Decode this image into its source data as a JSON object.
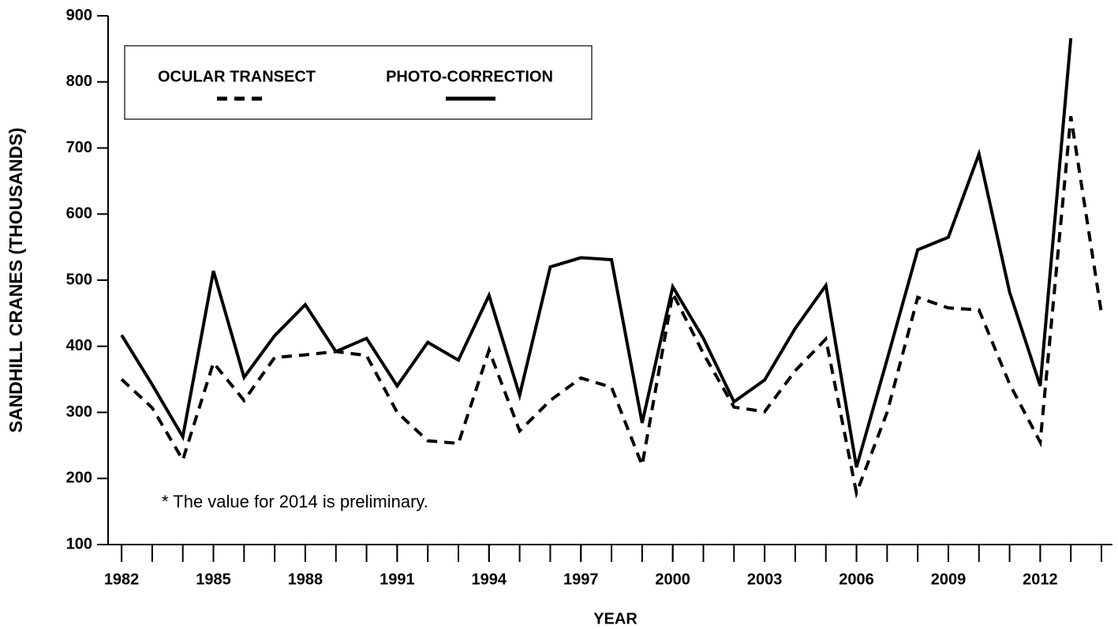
{
  "chart_data": {
    "type": "line",
    "y_label": "SANDHILL CRANES (THOUSANDS)",
    "x_label": "YEAR",
    "annotation": "* The value for 2014 is preliminary.",
    "x": [
      1982,
      1983,
      1984,
      1985,
      1986,
      1987,
      1988,
      1989,
      1990,
      1991,
      1992,
      1993,
      1994,
      1995,
      1996,
      1997,
      1998,
      1999,
      2000,
      2001,
      2002,
      2003,
      2004,
      2005,
      2006,
      2007,
      2008,
      2009,
      2010,
      2011,
      2012,
      2013,
      2014
    ],
    "series": [
      {
        "name": "OCULAR TRANSECT",
        "color": "#000000",
        "dash": true,
        "values": [
          350,
          307,
          228,
          375,
          318,
          383,
          387,
          392,
          386,
          300,
          257,
          253,
          394,
          272,
          318,
          352,
          338,
          220,
          480,
          389,
          308,
          301,
          363,
          411,
          178,
          300,
          474,
          458,
          455,
          343,
          255,
          748,
          450
        ]
      },
      {
        "name": "PHOTO-CORRECTION",
        "color": "#000000",
        "dash": false,
        "values": [
          417,
          342,
          263,
          514,
          353,
          416,
          463,
          392,
          412,
          340,
          406,
          379,
          477,
          326,
          520,
          534,
          531,
          284,
          490,
          412,
          316,
          349,
          427,
          492,
          217,
          380,
          546,
          565,
          691,
          482,
          340,
          866,
          null
        ]
      }
    ],
    "xlim": [
      1981.56,
      2014.36
    ],
    "xticks": [
      1982,
      1985,
      1988,
      1991,
      1994,
      1997,
      2000,
      2003,
      2006,
      2009,
      2012
    ],
    "xminorticks": [
      1982,
      1983,
      1984,
      1985,
      1986,
      1987,
      1988,
      1989,
      1990,
      1991,
      1992,
      1993,
      1994,
      1995,
      1996,
      1997,
      1998,
      1999,
      2000,
      2001,
      2002,
      2003,
      2004,
      2005,
      2006,
      2007,
      2008,
      2009,
      2010,
      2011,
      2012,
      2013,
      2014
    ],
    "ylim": [
      100,
      900
    ],
    "yticks": [
      100,
      200,
      300,
      400,
      500,
      600,
      700,
      800,
      900
    ],
    "legend": "upper left",
    "grid": false
  }
}
